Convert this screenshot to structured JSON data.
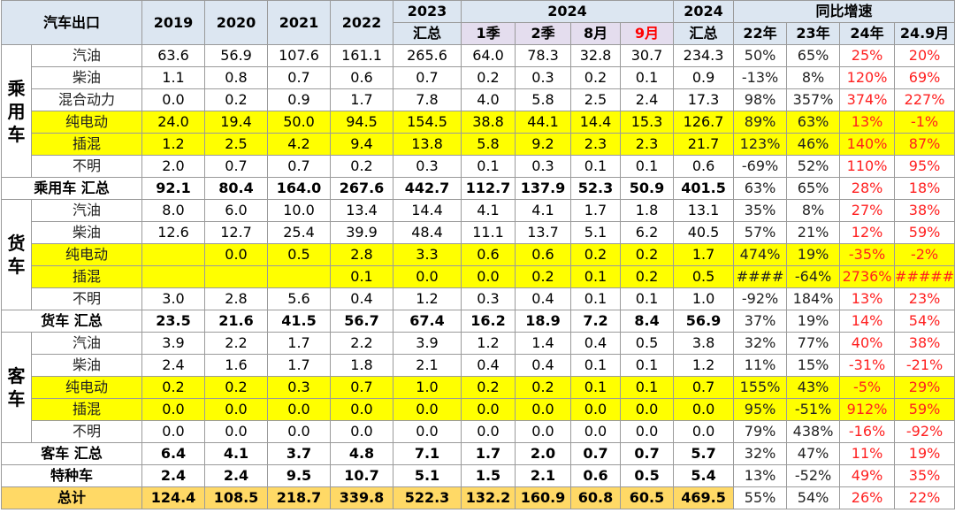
{
  "header": {
    "corner": "汽车出口",
    "years": [
      "2019",
      "2020",
      "2021",
      "2022"
    ],
    "y2023": [
      "2023",
      "汇总"
    ],
    "y2024_group": "2024",
    "y2024_sub": [
      "1季",
      "2季",
      "8月",
      "9月"
    ],
    "y2024_total": [
      "2024",
      "汇总"
    ],
    "growth_group": "同比增速",
    "growth_sub": [
      "22年",
      "23年",
      "24年",
      "24.9月"
    ]
  },
  "rows": [
    {
      "cat": "乘用车",
      "label": "汽油",
      "v": [
        "63.6",
        "56.9",
        "107.6",
        "161.1",
        "265.6",
        "64.0",
        "78.3",
        "32.8",
        "30.7",
        "234.3"
      ],
      "g": [
        "50%",
        "65%",
        "25%",
        "20%"
      ],
      "hl": false
    },
    {
      "label": "柴油",
      "v": [
        "1.1",
        "0.8",
        "0.7",
        "0.6",
        "0.7",
        "0.2",
        "0.3",
        "0.2",
        "0.1",
        "0.9"
      ],
      "g": [
        "-13%",
        "8%",
        "120%",
        "69%"
      ],
      "hl": false
    },
    {
      "label": "混合动力",
      "v": [
        "0.0",
        "0.2",
        "0.9",
        "1.7",
        "7.8",
        "4.0",
        "5.8",
        "2.5",
        "2.4",
        "17.3"
      ],
      "g": [
        "98%",
        "357%",
        "374%",
        "227%"
      ],
      "hl": false
    },
    {
      "label": "纯电动",
      "v": [
        "24.0",
        "19.4",
        "50.0",
        "94.5",
        "154.5",
        "38.8",
        "44.1",
        "14.4",
        "15.3",
        "126.7"
      ],
      "g": [
        "89%",
        "63%",
        "13%",
        "-1%"
      ],
      "hl": true
    },
    {
      "label": "插混",
      "v": [
        "1.2",
        "2.5",
        "4.2",
        "9.4",
        "13.8",
        "5.8",
        "9.2",
        "2.3",
        "2.3",
        "21.7"
      ],
      "g": [
        "123%",
        "46%",
        "140%",
        "87%"
      ],
      "hl": true
    },
    {
      "label": "不明",
      "v": [
        "2.0",
        "0.7",
        "0.7",
        "0.2",
        "0.3",
        "0.1",
        "0.3",
        "0.1",
        "0.1",
        "0.6"
      ],
      "g": [
        "-69%",
        "52%",
        "110%",
        "95%"
      ],
      "hl": false
    },
    {
      "sum": true,
      "label": "乘用车 汇总",
      "v": [
        "92.1",
        "80.4",
        "164.0",
        "267.6",
        "442.7",
        "112.7",
        "137.9",
        "52.3",
        "50.9",
        "401.5"
      ],
      "g": [
        "63%",
        "65%",
        "28%",
        "18%"
      ]
    },
    {
      "cat": "货车",
      "label": "汽油",
      "v": [
        "8.0",
        "6.0",
        "10.0",
        "13.4",
        "14.4",
        "4.1",
        "4.1",
        "1.7",
        "1.8",
        "13.1"
      ],
      "g": [
        "35%",
        "8%",
        "27%",
        "38%"
      ],
      "hl": false
    },
    {
      "label": "柴油",
      "v": [
        "12.6",
        "12.7",
        "25.4",
        "39.9",
        "48.4",
        "11.1",
        "13.7",
        "5.1",
        "6.2",
        "40.5"
      ],
      "g": [
        "57%",
        "21%",
        "12%",
        "59%"
      ],
      "hl": false
    },
    {
      "label": "纯电动",
      "v": [
        "",
        "0.0",
        "0.5",
        "2.8",
        "3.3",
        "0.6",
        "0.6",
        "0.2",
        "0.2",
        "1.7"
      ],
      "g": [
        "474%",
        "19%",
        "-35%",
        "-2%"
      ],
      "hl": true
    },
    {
      "label": "插混",
      "v": [
        "",
        "",
        "",
        "0.1",
        "0.0",
        "0.0",
        "0.2",
        "0.1",
        "0.2",
        "0.5"
      ],
      "g": [
        "####",
        "-64%",
        "2736%",
        "#####"
      ],
      "hl": true
    },
    {
      "label": "不明",
      "v": [
        "3.0",
        "2.8",
        "5.6",
        "0.4",
        "1.2",
        "0.3",
        "0.4",
        "0.1",
        "0.1",
        "1.0"
      ],
      "g": [
        "-92%",
        "184%",
        "13%",
        "23%"
      ],
      "hl": false
    },
    {
      "sum": true,
      "label": "货车 汇总",
      "v": [
        "23.5",
        "21.6",
        "41.5",
        "56.7",
        "67.4",
        "16.2",
        "18.9",
        "7.2",
        "8.4",
        "56.9"
      ],
      "g": [
        "37%",
        "19%",
        "14%",
        "54%"
      ]
    },
    {
      "cat": "客车",
      "label": "汽油",
      "v": [
        "3.9",
        "2.2",
        "1.7",
        "2.2",
        "3.9",
        "1.2",
        "1.4",
        "0.4",
        "0.5",
        "3.8"
      ],
      "g": [
        "32%",
        "77%",
        "40%",
        "38%"
      ],
      "hl": false
    },
    {
      "label": "柴油",
      "v": [
        "2.4",
        "1.6",
        "1.7",
        "1.8",
        "2.1",
        "0.4",
        "0.4",
        "0.1",
        "0.1",
        "1.2"
      ],
      "g": [
        "11%",
        "15%",
        "-31%",
        "-21%"
      ],
      "hl": false
    },
    {
      "label": "纯电动",
      "v": [
        "0.2",
        "0.2",
        "0.3",
        "0.7",
        "1.0",
        "0.2",
        "0.2",
        "0.1",
        "0.1",
        "0.7"
      ],
      "g": [
        "155%",
        "43%",
        "-5%",
        "29%"
      ],
      "hl": true
    },
    {
      "label": "插混",
      "v": [
        "0.0",
        "0.0",
        "0.0",
        "0.0",
        "0.0",
        "0.0",
        "0.0",
        "0.0",
        "0.0",
        "0.0"
      ],
      "g": [
        "95%",
        "-51%",
        "912%",
        "59%"
      ],
      "hl": true
    },
    {
      "label": "不明",
      "v": [
        "0.0",
        "0.0",
        "0.0",
        "0.0",
        "0.0",
        "0.0",
        "0.0",
        "0.0",
        "0.0",
        "0.0"
      ],
      "g": [
        "79%",
        "438%",
        "-16%",
        "-92%"
      ],
      "hl": false
    },
    {
      "sum": true,
      "label": "客车 汇总",
      "v": [
        "6.4",
        "4.1",
        "3.7",
        "4.8",
        "7.1",
        "1.7",
        "2.0",
        "0.7",
        "0.7",
        "5.7"
      ],
      "g": [
        "32%",
        "47%",
        "11%",
        "19%"
      ]
    },
    {
      "special": true,
      "label": "特种车",
      "v": [
        "2.4",
        "2.4",
        "9.5",
        "10.7",
        "5.1",
        "1.5",
        "2.1",
        "0.6",
        "0.5",
        "5.4"
      ],
      "g": [
        "13%",
        "-52%",
        "49%",
        "35%"
      ]
    },
    {
      "total": true,
      "label": "总计",
      "v": [
        "124.4",
        "108.5",
        "218.7",
        "339.8",
        "522.3",
        "132.2",
        "160.9",
        "60.8",
        "60.5",
        "469.5"
      ],
      "g": [
        "55%",
        "54%",
        "26%",
        "22%"
      ]
    }
  ],
  "colors": {
    "header_bg": "#dce6f1",
    "highlight": "#ffff00",
    "total_bg": "#ffd966",
    "negative_growth": "#ff0000"
  }
}
